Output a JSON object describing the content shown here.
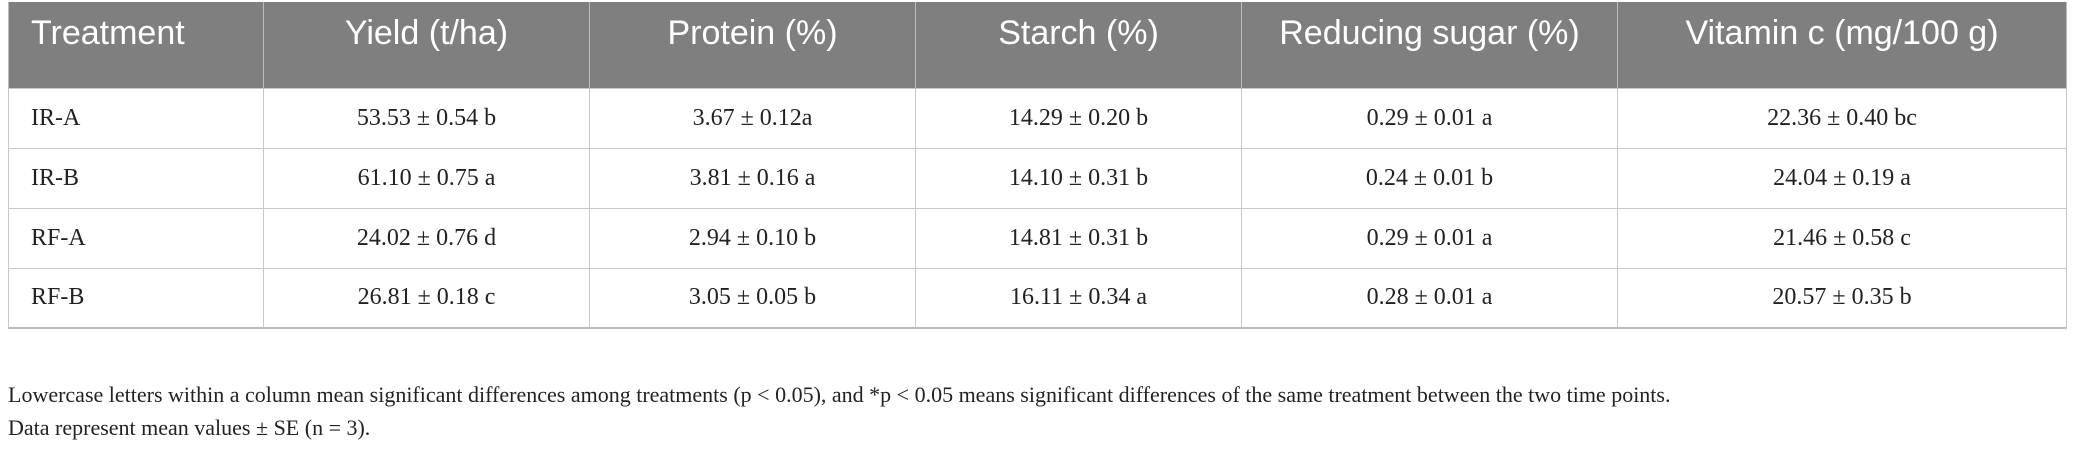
{
  "table": {
    "headers": [
      "Treatment",
      "Yield (t/ha)",
      "Protein (%)",
      "Starch (%)",
      "Reducing sugar (%)",
      "Vitamin c (mg/100 g)"
    ],
    "rows": [
      [
        "IR-A",
        "53.53 ± 0.54 b",
        "3.67 ± 0.12a",
        "14.29 ± 0.20 b",
        "0.29 ± 0.01 a",
        "22.36 ± 0.40 bc"
      ],
      [
        "IR-B",
        "61.10 ± 0.75 a",
        "3.81 ± 0.16 a",
        "14.10 ± 0.31 b",
        "0.24 ± 0.01 b",
        "24.04 ± 0.19 a"
      ],
      [
        "RF-A",
        "24.02 ± 0.76 d",
        "2.94 ± 0.10 b",
        "14.81 ± 0.31 b",
        "0.29 ± 0.01 a",
        "21.46 ± 0.58 c"
      ],
      [
        "RF-B",
        "26.81 ± 0.18 c",
        "3.05 ± 0.05 b",
        "16.11 ± 0.34 a",
        "0.28 ± 0.01 a",
        "20.57 ± 0.35 b"
      ]
    ]
  },
  "footnote": {
    "line1": "Lowercase letters within a column mean significant differences among treatments (p < 0.05), and *p < 0.05 means significant differences of the same treatment between the two time points.",
    "line2": "Data represent mean values ± SE (n = 3)."
  }
}
